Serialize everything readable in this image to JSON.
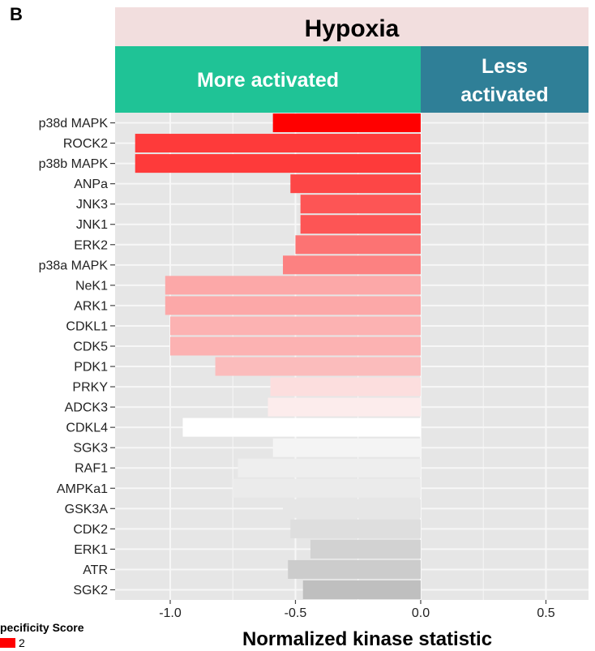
{
  "panel_letter": "B",
  "legend": {
    "title": "pecificity Score",
    "value_label": "2",
    "color": "#ff0000"
  },
  "colors": {
    "facet_strip": "#f2dede",
    "more_band": "#1fc396",
    "less_band": "#2f7f97",
    "panel_background": "#e6e6e6",
    "gridline": "#f7f7f7"
  },
  "chart_data": {
    "type": "bar",
    "orientation": "horizontal",
    "title": "Hypoxia",
    "bands": {
      "more": "More activated",
      "less_line1": "Less",
      "less_line2": "activated"
    },
    "xlabel": "Normalized kinase statistic",
    "xlim": [
      -1.22,
      0.67
    ],
    "xticks": [
      -1.0,
      -0.5,
      0.0,
      0.5
    ],
    "xtick_labels": [
      "-1.0",
      "-0.5",
      "0.0",
      "0.5"
    ],
    "grid": true,
    "categories": [
      "p38d MAPK",
      "ROCK2",
      "p38b MAPK",
      "ANPa",
      "JNK3",
      "JNK1",
      "ERK2",
      "p38a MAPK",
      "NeK1",
      "ARK1",
      "CDKL1",
      "CDK5",
      "PDK1",
      "PRKY",
      "ADCK3",
      "CDKL4",
      "SGK3",
      "RAF1",
      "AMPKa1",
      "GSK3A",
      "CDK2",
      "ERK1",
      "ATR",
      "SGK2"
    ],
    "values": [
      -0.59,
      -1.14,
      -1.14,
      -0.52,
      -0.48,
      -0.48,
      -0.5,
      -0.55,
      -1.02,
      -1.02,
      -1.0,
      -1.0,
      -0.82,
      -0.6,
      -0.61,
      -0.95,
      -0.59,
      -0.73,
      -0.75,
      -0.55,
      -0.52,
      -0.44,
      -0.53,
      -0.47
    ],
    "colors": [
      "#ff0000",
      "#fe3a3a",
      "#fe3a3a",
      "#fd4646",
      "#fd5555",
      "#fd5555",
      "#fc7373",
      "#fc8181",
      "#fca8a8",
      "#fca8a8",
      "#fcb2b2",
      "#fcb2b2",
      "#fbbcbc",
      "#fcdede",
      "#fcecec",
      "#ffffff",
      "#f4f4f4",
      "#eeeeee",
      "#ebebeb",
      "#e6e6e6",
      "#dedede",
      "#d2d2d2",
      "#cccccc",
      "#bfbfbf"
    ]
  }
}
